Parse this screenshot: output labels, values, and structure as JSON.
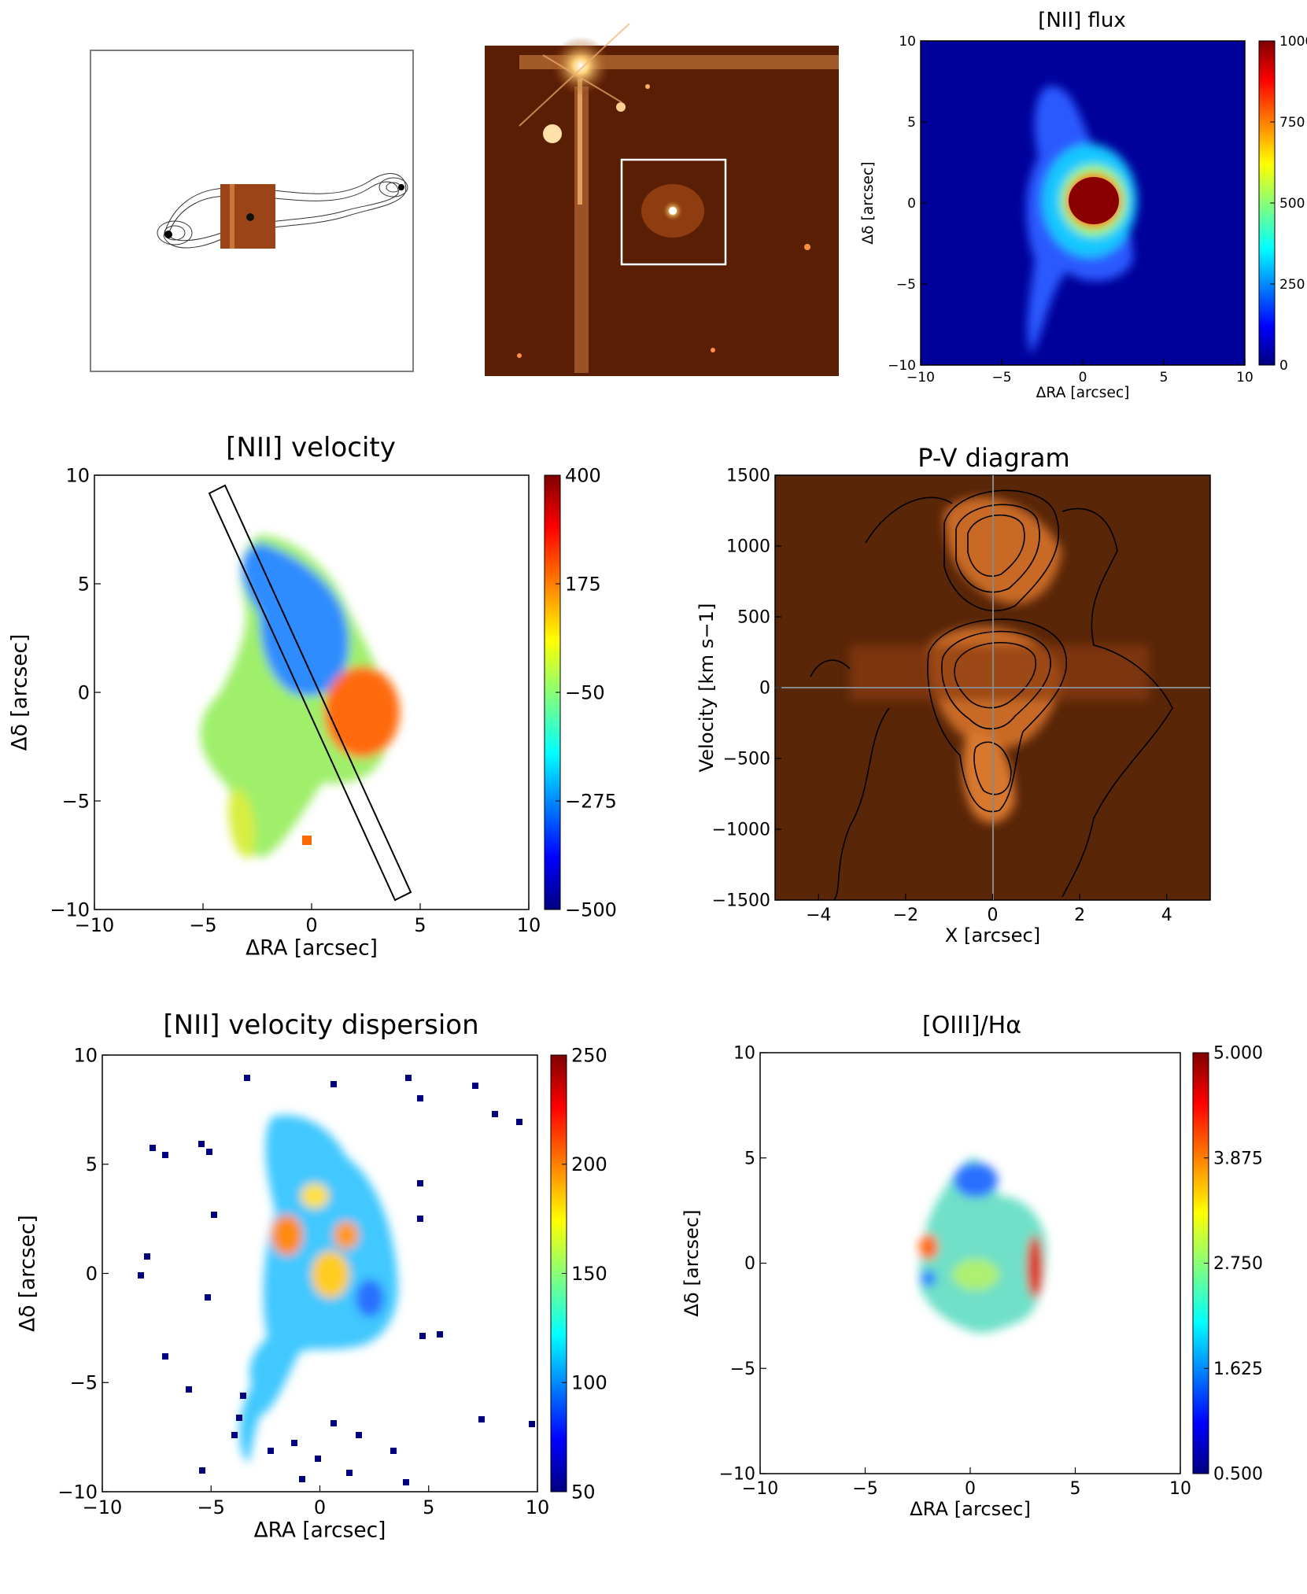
{
  "figure": {
    "panels": [
      {
        "id": "radio",
        "title": ""
      },
      {
        "id": "optical",
        "title": ""
      },
      {
        "id": "flux",
        "title": "[NII] flux"
      },
      {
        "id": "velocity",
        "title": "[NII] velocity"
      },
      {
        "id": "pv",
        "title": "P-V diagram"
      },
      {
        "id": "dispersion",
        "title": "[NII] velocity dispersion"
      },
      {
        "id": "ratio",
        "title": "[OIII]/Hα"
      }
    ]
  },
  "chart_data": [
    {
      "id": "flux",
      "type": "heatmap",
      "title": "[NII] flux",
      "xlabel": "ΔRA [arcsec]",
      "ylabel": "Δδ [arcsec]",
      "xlim": [
        -10,
        10
      ],
      "ylim": [
        -10,
        10
      ],
      "xticks": [
        "−10",
        "−5",
        "0",
        "5",
        "10"
      ],
      "yticks": [
        "−10",
        "−5",
        "0",
        "5",
        "10"
      ],
      "colorbar": {
        "range": [
          0,
          1000
        ],
        "ticks": [
          "0",
          "250",
          "500",
          "750",
          "1000"
        ],
        "colormap": "jet"
      },
      "colormap_stops": [
        "#00007f",
        "#0000ff",
        "#00ffff",
        "#ffff00",
        "#ff0000",
        "#7f0000"
      ]
    },
    {
      "id": "velocity",
      "type": "heatmap",
      "title": "[NII] velocity",
      "xlabel": "ΔRA [arcsec]",
      "ylabel": "Δδ [arcsec]",
      "xlim": [
        -10,
        10
      ],
      "ylim": [
        -10,
        10
      ],
      "xticks": [
        "−10",
        "−5",
        "0",
        "5",
        "10"
      ],
      "yticks": [
        "−10",
        "−5",
        "0",
        "5",
        "10"
      ],
      "colorbar": {
        "range": [
          -500,
          400
        ],
        "ticks": [
          "−500",
          "−275",
          "−50",
          "175",
          "400"
        ],
        "colormap": "jet"
      },
      "slit": {
        "from": [
          -4.5,
          9.2
        ],
        "to": [
          4.2,
          -9.6
        ]
      }
    },
    {
      "id": "pv",
      "type": "heatmap",
      "title": "P-V diagram",
      "xlabel": "X [arcsec]",
      "ylabel": "Velocity [km s−1]",
      "xlim": [
        -5,
        5
      ],
      "ylim": [
        -1500,
        1500
      ],
      "xticks": [
        "−4",
        "−2",
        "0",
        "2",
        "4"
      ],
      "yticks": [
        "−1500",
        "−1000",
        "−500",
        "0",
        "500",
        "1000",
        "1500"
      ],
      "colormap": "orange-hot",
      "components": [
        {
          "x": 0.3,
          "v": 1100
        },
        {
          "x": 0.0,
          "v": 100
        },
        {
          "x": 0.0,
          "v": -650
        }
      ]
    },
    {
      "id": "dispersion",
      "type": "heatmap",
      "title": "[NII] velocity dispersion",
      "xlabel": "ΔRA [arcsec]",
      "ylabel": "Δδ [arcsec]",
      "xlim": [
        -10,
        10
      ],
      "ylim": [
        -10,
        10
      ],
      "xticks": [
        "−10",
        "−5",
        "0",
        "5",
        "10"
      ],
      "yticks": [
        "−10",
        "−5",
        "0",
        "5",
        "10"
      ],
      "colorbar": {
        "range": [
          50,
          250
        ],
        "ticks": [
          "50",
          "100",
          "150",
          "200",
          "250"
        ],
        "colormap": "jet"
      }
    },
    {
      "id": "ratio",
      "type": "heatmap",
      "title": "[OIII]/Hα",
      "xlabel": "ΔRA [arcsec]",
      "ylabel": "Δδ [arcsec]",
      "xlim": [
        -10,
        10
      ],
      "ylim": [
        -10,
        10
      ],
      "xticks": [
        "−10",
        "−5",
        "0",
        "5",
        "10"
      ],
      "yticks": [
        "−10",
        "−5",
        "0",
        "5",
        "10"
      ],
      "colorbar": {
        "range": [
          0.5,
          5.0
        ],
        "ticks": [
          "0.500",
          "1.625",
          "2.750",
          "3.875",
          "5.000"
        ],
        "colormap": "jet"
      }
    }
  ]
}
